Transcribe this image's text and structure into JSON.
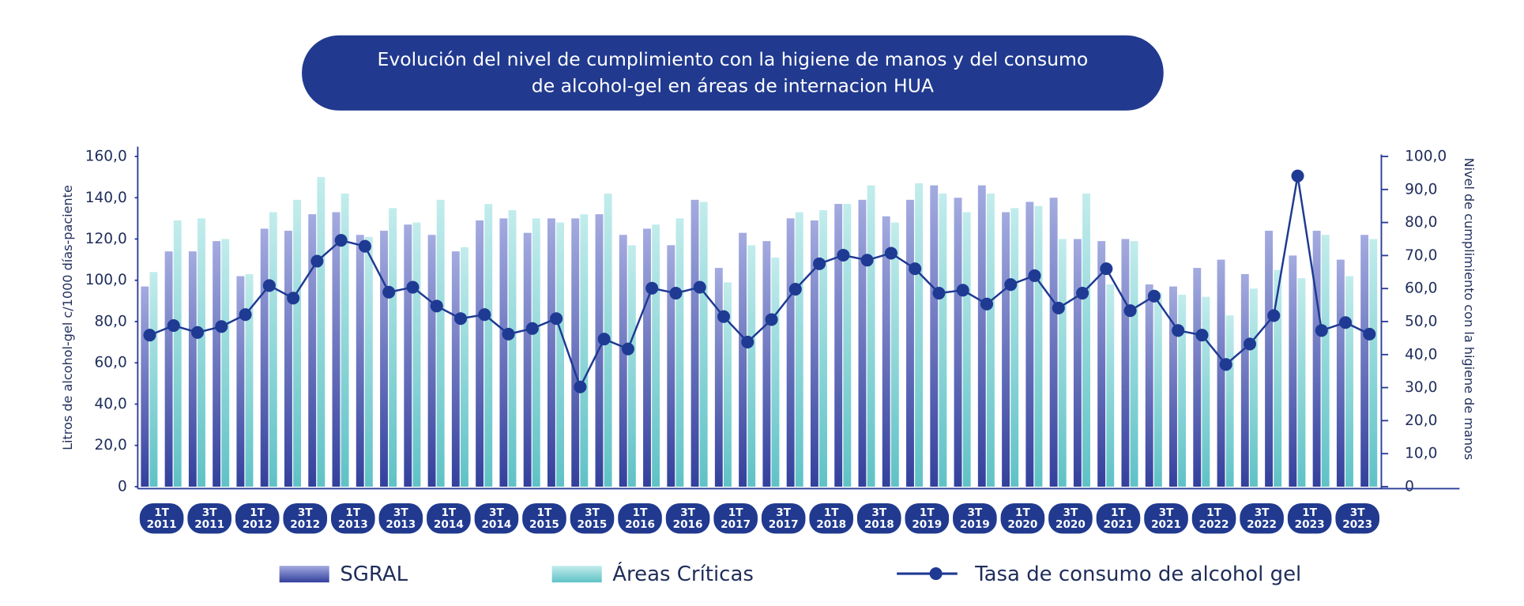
{
  "chart_data": {
    "type": "combo",
    "title": "Evolución del nivel de cumplimiento con la higiene de manos y del consumo\nde alcohol-gel en áreas de internacion HUA",
    "ylabel": "Litros de alcohol-gel c/1000 días-paciente",
    "y2label": "Nivel de cumplimiento con la higiene de manos",
    "categories": [
      "1T\n2011",
      null,
      "3T\n2011",
      null,
      "1T\n2012",
      null,
      "3T\n2012",
      null,
      "1T\n2013",
      null,
      "3T\n2013",
      null,
      "1T\n2014",
      null,
      "3T\n2014",
      null,
      "1T\n2015",
      null,
      "3T\n2015",
      null,
      "1T\n2016",
      null,
      "3T\n2016",
      null,
      "1T\n2017",
      null,
      "3T\n2017",
      null,
      "1T\n2018",
      null,
      "3T\n2018",
      null,
      "1T\n2019",
      null,
      "3T\n2019",
      null,
      "1T\n2020",
      null,
      "3T\n2020",
      null,
      "1T\n2021",
      null,
      "3T\n2021",
      null,
      "1T\n2022",
      null,
      "3T\n2022",
      null,
      "1T\n2023",
      null,
      "3T\n2023",
      null
    ],
    "ylim": [
      0,
      160
    ],
    "yticks": [
      0,
      {
        "value": 20,
        "label": "20,0"
      },
      {
        "value": 40,
        "label": "40,0"
      },
      {
        "value": 60,
        "label": "60,0"
      },
      {
        "value": 80,
        "label": "80,0"
      },
      {
        "value": 100,
        "label": "100,0"
      },
      {
        "value": 120,
        "label": "120,0"
      },
      {
        "value": 140,
        "label": "140,0"
      },
      {
        "value": 160,
        "label": "160,0"
      }
    ],
    "y2lim": [
      0,
      100
    ],
    "y2ticks": [
      0,
      {
        "value": 10,
        "label": "10,0"
      },
      {
        "value": 20,
        "label": "20,0"
      },
      {
        "value": 30,
        "label": "30,0"
      },
      {
        "value": 40,
        "label": "40,0"
      },
      {
        "value": 50,
        "label": "50,0"
      },
      {
        "value": 60,
        "label": "60,0"
      },
      {
        "value": 70,
        "label": "70,0"
      },
      {
        "value": 80,
        "label": "80,0"
      },
      {
        "value": 90,
        "label": "90,0"
      },
      {
        "value": 100,
        "label": "100,0"
      }
    ],
    "series": [
      {
        "name": "SGRAL",
        "type": "bar",
        "color": "#5a63b8",
        "values": [
          97,
          114,
          114,
          119,
          102,
          125,
          124,
          132,
          133,
          122,
          124,
          127,
          122,
          114,
          129,
          130,
          123,
          130,
          130,
          132,
          122,
          125,
          117,
          139,
          106,
          123,
          119,
          130,
          129,
          137,
          139,
          131,
          139,
          146,
          140,
          146,
          133,
          138,
          140,
          120,
          119,
          120,
          98,
          97,
          106,
          110,
          103,
          124,
          112,
          124,
          110,
          122
        ]
      },
      {
        "name": "Áreas Críticas",
        "type": "bar",
        "color": "#7fd0d2",
        "values": [
          104,
          129,
          130,
          120,
          103,
          133,
          139,
          150,
          142,
          121,
          135,
          128,
          139,
          116,
          137,
          134,
          130,
          128,
          132,
          142,
          117,
          127,
          130,
          138,
          99,
          117,
          111,
          133,
          134,
          137,
          146,
          128,
          147,
          142,
          133,
          142,
          135,
          136,
          120,
          142,
          98,
          119,
          94,
          93,
          92,
          83,
          96,
          105,
          101,
          122,
          102,
          120
        ]
      },
      {
        "name": "Tasa de consumo de alcohol gel",
        "type": "line",
        "axis": "y2",
        "color": "#1f3a93",
        "values": [
          45.9,
          48.8,
          46.7,
          48.5,
          52.1,
          60.9,
          57.1,
          68.3,
          74.6,
          72.8,
          58.9,
          60.4,
          54.7,
          50.9,
          52.1,
          46.2,
          47.9,
          50.9,
          30.2,
          44.7,
          41.7,
          60.1,
          58.6,
          60.4,
          51.5,
          43.8,
          50.6,
          59.8,
          67.5,
          70.1,
          68.6,
          70.7,
          66.0,
          58.6,
          59.5,
          55.3,
          61.2,
          63.9,
          54.1,
          58.6,
          66.0,
          53.3,
          57.7,
          47.3,
          45.9,
          37.0,
          43.2,
          51.8,
          94.1,
          47.3,
          49.7,
          46.2
        ]
      }
    ]
  }
}
